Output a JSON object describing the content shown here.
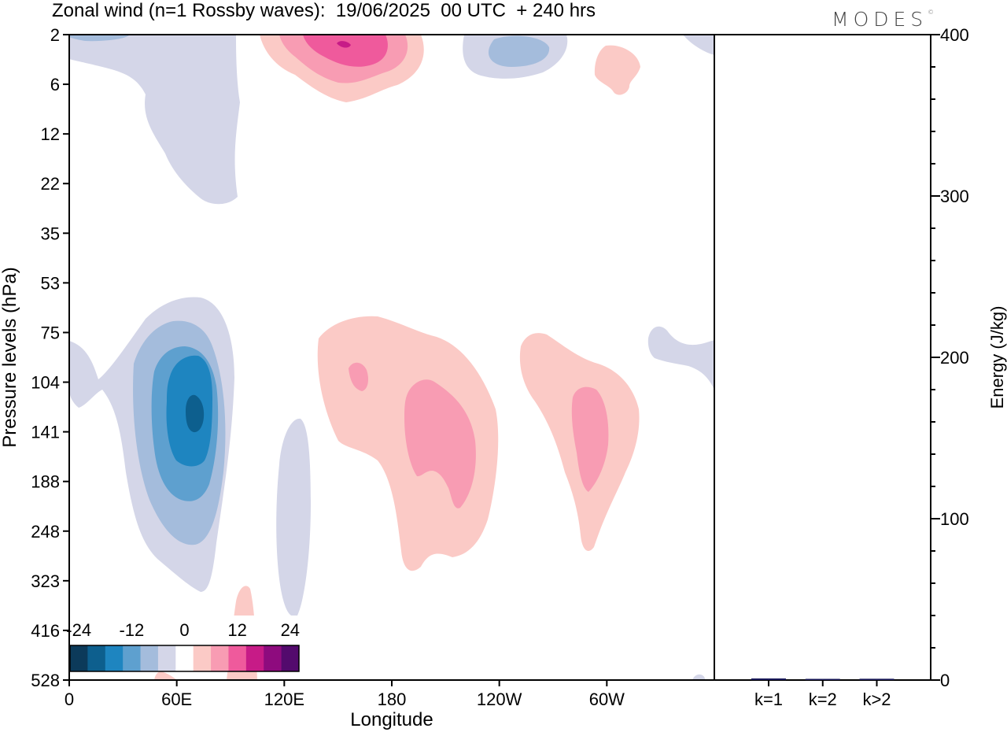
{
  "title": "Zonal wind (n=1 Rossby waves):  19/06/2025  00 UTC  + 240 hrs",
  "logo": "MODES",
  "chart_data": [
    {
      "type": "heatmap",
      "xlabel": "Longitude",
      "ylabel": "Pressure levels (hPa)",
      "x_ticks": [
        {
          "lon": 0,
          "label": "0"
        },
        {
          "lon": 60,
          "label": "60E"
        },
        {
          "lon": 120,
          "label": "120E"
        },
        {
          "lon": 180,
          "label": "180"
        },
        {
          "lon": 240,
          "label": "120W"
        },
        {
          "lon": 300,
          "label": "60W"
        }
      ],
      "xlim": [
        0,
        360
      ],
      "y_ticks": [
        "2",
        "6",
        "12",
        "22",
        "35",
        "53",
        "75",
        "104",
        "141",
        "188",
        "248",
        "323",
        "416",
        "528"
      ],
      "colorbar": {
        "tick_labels": [
          "-24",
          "-12",
          "0",
          "12",
          "24"
        ],
        "colors": [
          "#0c3a5a",
          "#0d5f8e",
          "#1e85c0",
          "#5ea0cf",
          "#a4bcdc",
          "#d4d6e8",
          "#ffffff",
          "#fbcac6",
          "#f89cb3",
          "#ef5a9c",
          "#c71b87",
          "#8e0b7e",
          "#530a6d"
        ]
      },
      "features": [
        {
          "lon": 9,
          "level": "2",
          "value": -8
        },
        {
          "lon": 75,
          "level": "12",
          "value": -4
        },
        {
          "lon": 75,
          "level": "141",
          "value": -24
        },
        {
          "lon": 95,
          "level": "416",
          "value": 6
        },
        {
          "lon": 127,
          "level": "188",
          "value": -4
        },
        {
          "lon": 152,
          "level": "2",
          "value": 20
        },
        {
          "lon": 162,
          "level": "104",
          "value": 10
        },
        {
          "lon": 201,
          "level": "141",
          "value": 12
        },
        {
          "lon": 240,
          "level": "2",
          "value": -8
        },
        {
          "lon": 288,
          "level": "6",
          "value": 6
        },
        {
          "lon": 290,
          "level": "141",
          "value": 12
        },
        {
          "lon": 350,
          "level": "75",
          "value": -4
        }
      ]
    },
    {
      "type": "bar",
      "categories": [
        "k=1",
        "k=2",
        "k>2"
      ],
      "values": [
        1,
        0.5,
        0.8
      ],
      "ylabel": "Energy (J/kg)",
      "ylim": [
        0,
        400
      ],
      "y_ticks": [
        "0",
        "100",
        "200",
        "300",
        "400"
      ],
      "bar_color": "#1a1a5a"
    }
  ]
}
